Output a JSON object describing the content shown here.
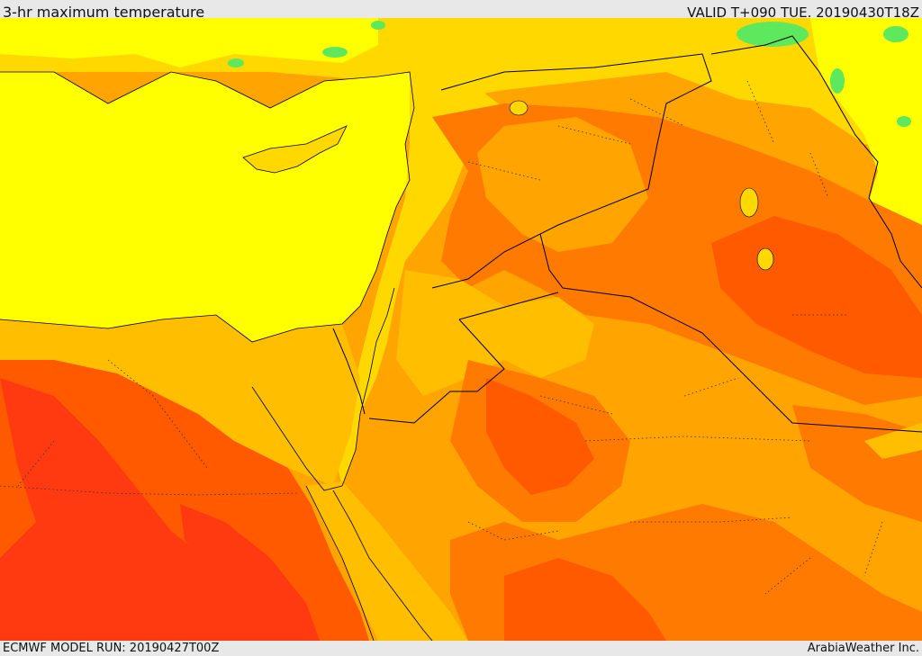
{
  "header": {
    "title": "3-hr maximum temperature",
    "valid": "VALID T+090 TUE. 20190430T18Z"
  },
  "footer": {
    "model_run": "ECMWF MODEL RUN: 20190427T00Z",
    "credit": "ArabiaWeather Inc."
  },
  "colors": {
    "sea": "#ffff00",
    "warm_yellow": "#ffd800",
    "orange_light": "#ffbe00",
    "orange": "#ffa400",
    "orange_dark": "#ff7a00",
    "red_orange": "#ff5a00",
    "red": "#ff3a10",
    "green": "#5ee85e",
    "border": "#000000"
  }
}
